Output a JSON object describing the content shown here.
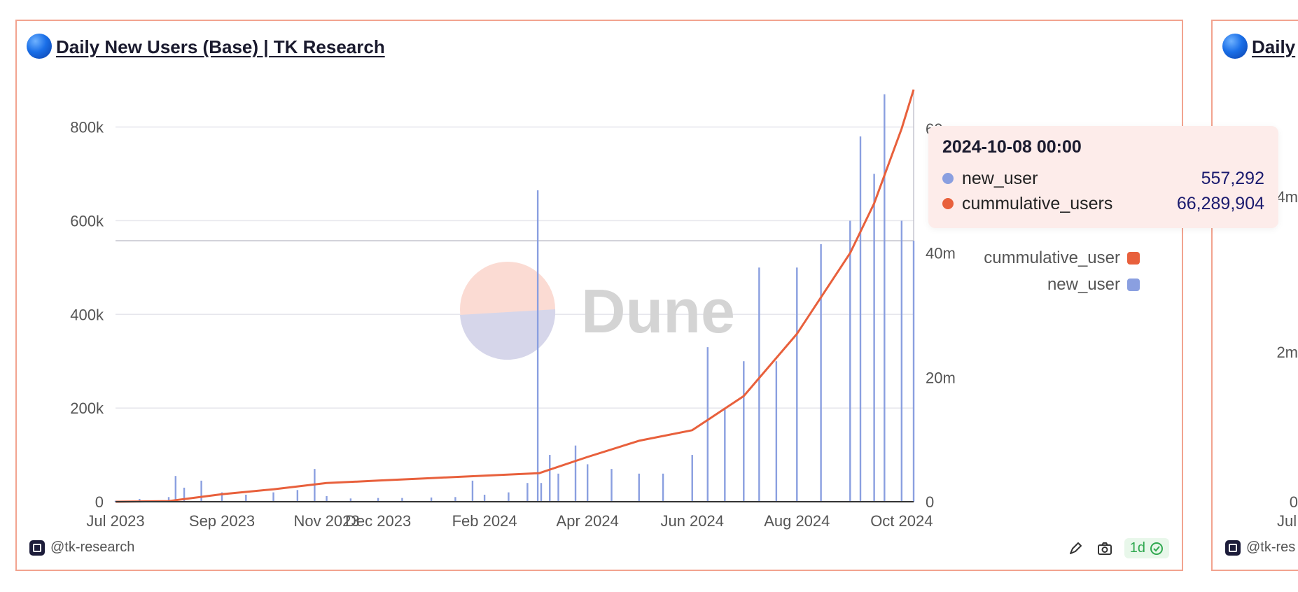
{
  "cards": [
    {
      "title": "Daily New Users (Base) | TK Research",
      "author": "@tk-research",
      "refresh_label": "1d"
    },
    {
      "title": "Daily",
      "author": "@tk-res",
      "visible_y_ticks": [
        "4m",
        "2m",
        "0"
      ],
      "visible_x_tick": "Jul"
    }
  ],
  "watermark": "Dune",
  "colors": {
    "new_user": "#8a9fe0",
    "cummulative_users": "#e8603c",
    "card_border": "#f2a38f",
    "tooltip_bg": "#fdecea"
  },
  "icons": {
    "title": "blue-circle-icon",
    "author": "dune-badge-icon",
    "actions": [
      "edit-icon",
      "camera-icon",
      "check-circle-icon"
    ]
  },
  "tooltip": {
    "date": "2024-10-08 00:00",
    "rows": [
      {
        "name": "new_user",
        "value": "557,292",
        "color": "#8a9fe0"
      },
      {
        "name": "cummulative_users",
        "value": "66,289,904",
        "color": "#e8603c"
      }
    ]
  },
  "chart_data": {
    "type": "bar",
    "title": "Daily New Users (Base) | TK Research",
    "x_range": [
      "2023-07-01",
      "2024-10-08"
    ],
    "x_ticks": [
      "Jul 2023",
      "Sep 2023",
      "Nov 2023",
      "Dec 2023",
      "Feb 2024",
      "Apr 2024",
      "Jun 2024",
      "Aug 2024",
      "Oct 2024"
    ],
    "y_left": {
      "ticks": [
        "0",
        "200k",
        "400k",
        "600k",
        "800k"
      ],
      "range": [
        0,
        880000
      ]
    },
    "y_right": {
      "ticks": [
        "0",
        "20m",
        "40m",
        "60m"
      ],
      "range": [
        0,
        66300000
      ]
    },
    "legend": [
      "cummulative_user",
      "new_user"
    ],
    "legend_position": "right",
    "grid": true,
    "series": [
      {
        "name": "new_user",
        "type": "bar",
        "axis": "left",
        "points": [
          [
            "2023-07-01",
            2000
          ],
          [
            "2023-07-15",
            6000
          ],
          [
            "2023-08-01",
            10000
          ],
          [
            "2023-08-05",
            55000
          ],
          [
            "2023-08-10",
            30000
          ],
          [
            "2023-08-20",
            45000
          ],
          [
            "2023-09-01",
            20000
          ],
          [
            "2023-09-15",
            15000
          ],
          [
            "2023-10-01",
            20000
          ],
          [
            "2023-10-15",
            25000
          ],
          [
            "2023-10-25",
            70000
          ],
          [
            "2023-11-01",
            12000
          ],
          [
            "2023-11-15",
            7000
          ],
          [
            "2023-12-01",
            8000
          ],
          [
            "2023-12-15",
            8000
          ],
          [
            "2024-01-01",
            9000
          ],
          [
            "2024-01-15",
            10000
          ],
          [
            "2024-01-25",
            45000
          ],
          [
            "2024-02-01",
            15000
          ],
          [
            "2024-02-15",
            20000
          ],
          [
            "2024-02-26",
            40000
          ],
          [
            "2024-03-03",
            665000
          ],
          [
            "2024-03-05",
            40000
          ],
          [
            "2024-03-10",
            100000
          ],
          [
            "2024-03-15",
            60000
          ],
          [
            "2024-03-25",
            120000
          ],
          [
            "2024-04-01",
            80000
          ],
          [
            "2024-04-15",
            70000
          ],
          [
            "2024-05-01",
            60000
          ],
          [
            "2024-05-15",
            60000
          ],
          [
            "2024-06-01",
            100000
          ],
          [
            "2024-06-10",
            330000
          ],
          [
            "2024-06-20",
            200000
          ],
          [
            "2024-07-01",
            300000
          ],
          [
            "2024-07-10",
            500000
          ],
          [
            "2024-07-20",
            300000
          ],
          [
            "2024-08-01",
            500000
          ],
          [
            "2024-08-15",
            550000
          ],
          [
            "2024-09-01",
            600000
          ],
          [
            "2024-09-07",
            780000
          ],
          [
            "2024-09-15",
            700000
          ],
          [
            "2024-09-21",
            870000
          ],
          [
            "2024-10-01",
            600000
          ],
          [
            "2024-10-08",
            557292
          ]
        ]
      },
      {
        "name": "cummulative_users",
        "type": "line",
        "axis": "right",
        "points": [
          [
            "2023-07-01",
            0
          ],
          [
            "2023-08-01",
            100000
          ],
          [
            "2023-09-01",
            1200000
          ],
          [
            "2023-10-01",
            2000000
          ],
          [
            "2023-11-01",
            3000000
          ],
          [
            "2023-12-01",
            3400000
          ],
          [
            "2024-01-01",
            3800000
          ],
          [
            "2024-02-01",
            4200000
          ],
          [
            "2024-03-04",
            4600000
          ],
          [
            "2024-04-01",
            7200000
          ],
          [
            "2024-05-01",
            9800000
          ],
          [
            "2024-06-01",
            11500000
          ],
          [
            "2024-07-01",
            17000000
          ],
          [
            "2024-08-01",
            27000000
          ],
          [
            "2024-09-01",
            40000000
          ],
          [
            "2024-09-15",
            48000000
          ],
          [
            "2024-10-01",
            60000000
          ],
          [
            "2024-10-08",
            66289904
          ]
        ]
      }
    ]
  }
}
